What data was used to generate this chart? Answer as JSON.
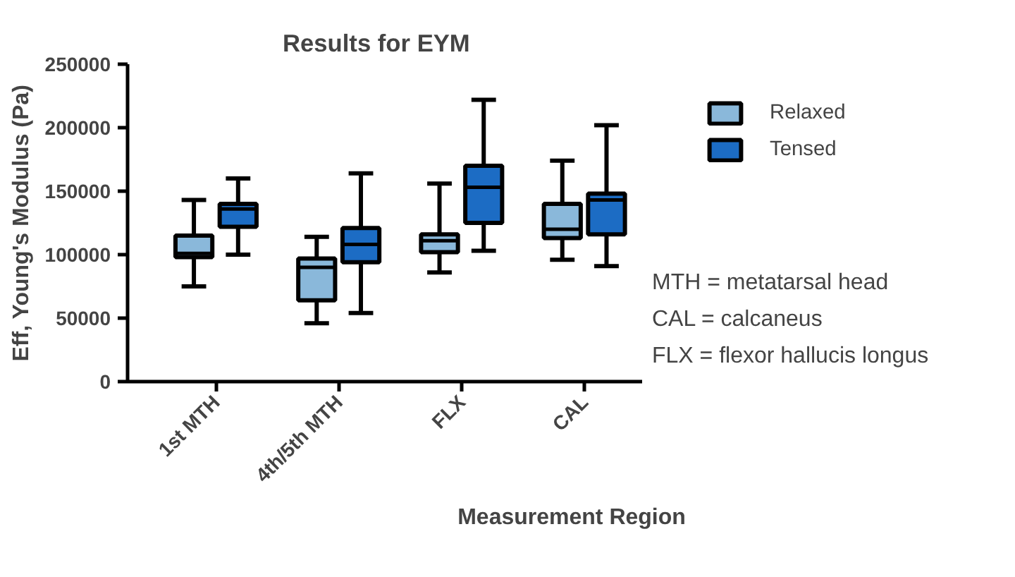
{
  "chart_data": {
    "type": "box",
    "title": "Results for EYM",
    "xlabel": "Measurement Region",
    "ylabel": "Eff, Young's Modulus (Pa)",
    "categories": [
      "1st MTH",
      "4th/5th MTH",
      "FLX",
      "CAL"
    ],
    "series": [
      {
        "name": "Relaxed",
        "color": "#8ab8da",
        "boxes": [
          {
            "low": 75000,
            "q1": 98000,
            "median": 101000,
            "q3": 115000,
            "high": 143000
          },
          {
            "low": 46000,
            "q1": 64000,
            "median": 90000,
            "q3": 97000,
            "high": 114000
          },
          {
            "low": 86000,
            "q1": 102000,
            "median": 111000,
            "q3": 116000,
            "high": 156000
          },
          {
            "low": 96000,
            "q1": 113000,
            "median": 120000,
            "q3": 140000,
            "high": 174000
          }
        ]
      },
      {
        "name": "Tensed",
        "color": "#1c6cc4",
        "boxes": [
          {
            "low": 100000,
            "q1": 122000,
            "median": 136000,
            "q3": 140000,
            "high": 160000
          },
          {
            "low": 54000,
            "q1": 94000,
            "median": 108000,
            "q3": 121000,
            "high": 164000
          },
          {
            "low": 103000,
            "q1": 125000,
            "median": 153000,
            "q3": 170000,
            "high": 222000
          },
          {
            "low": 91000,
            "q1": 116000,
            "median": 143000,
            "q3": 148000,
            "high": 202000
          }
        ]
      }
    ],
    "ylim": [
      0,
      250000
    ],
    "yticks": [
      0,
      50000,
      100000,
      150000,
      200000,
      250000
    ],
    "grid": false,
    "legend": "top right",
    "annotations": [
      "MTH = metatarsal head",
      "CAL = calcaneus",
      "FLX = flexor hallucis longus"
    ]
  }
}
